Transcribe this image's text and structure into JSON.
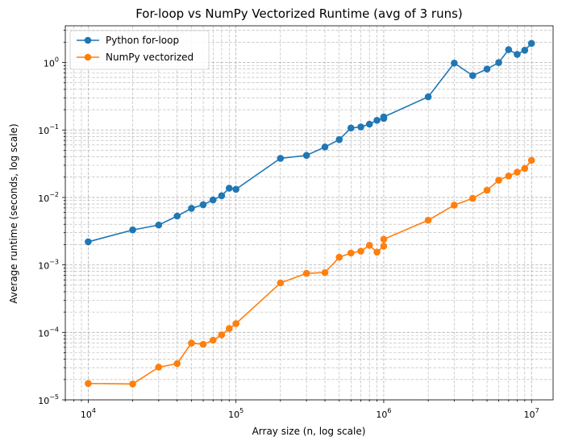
{
  "chart_data": {
    "type": "line",
    "title": "For-loop vs NumPy Vectorized Runtime (avg of 3 runs)",
    "xlabel": "Array size (n, log scale)",
    "ylabel": "Average runtime (seconds, log scale)",
    "xscale": "log",
    "yscale": "log",
    "xlim": [
      7000,
      14000000
    ],
    "ylim": [
      1e-05,
      3.5
    ],
    "grid": "both, major and minor, dashed",
    "legend": "top-left",
    "x_ticks": [
      {
        "mantissa": "10",
        "exp": "4"
      },
      {
        "mantissa": "10",
        "exp": "5"
      },
      {
        "mantissa": "10",
        "exp": "6"
      },
      {
        "mantissa": "10",
        "exp": "7"
      }
    ],
    "y_ticks": [
      {
        "mantissa": "10",
        "exp": "−5"
      },
      {
        "mantissa": "10",
        "exp": "−4"
      },
      {
        "mantissa": "10",
        "exp": "−3"
      },
      {
        "mantissa": "10",
        "exp": "−2"
      },
      {
        "mantissa": "10",
        "exp": "−1"
      },
      {
        "mantissa": "10",
        "exp": "0"
      }
    ],
    "x": [
      10000,
      20000,
      30000,
      40000,
      50000,
      60000,
      70000,
      80000,
      90000,
      100000,
      200000,
      300000,
      400000,
      500000,
      600000,
      700000,
      800000,
      900000,
      1000000,
      1000000,
      2000000,
      3000000,
      4000000,
      5000000,
      6000000,
      7000000,
      8000000,
      9000000,
      10000000
    ],
    "series": [
      {
        "name": "Python for-loop",
        "color": "#1f77b4",
        "values": [
          0.0022,
          0.0033,
          0.0039,
          0.0053,
          0.0069,
          0.0078,
          0.0092,
          0.0106,
          0.0137,
          0.0132,
          0.038,
          0.042,
          0.056,
          0.072,
          0.107,
          0.111,
          0.122,
          0.139,
          0.148,
          0.156,
          0.31,
          0.98,
          0.64,
          0.8,
          1.0,
          1.55,
          1.32,
          1.52,
          1.92
        ]
      },
      {
        "name": "NumPy vectorized",
        "color": "#ff7f0e",
        "values": [
          1.75e-05,
          1.72e-05,
          3.05e-05,
          3.45e-05,
          6.95e-05,
          6.65e-05,
          7.65e-05,
          9.2e-05,
          0.000114,
          0.000135,
          0.00054,
          0.00075,
          0.00077,
          0.0013,
          0.0015,
          0.0016,
          0.00195,
          0.00155,
          0.0019,
          0.0024,
          0.0046,
          0.0077,
          0.0097,
          0.0128,
          0.018,
          0.0208,
          0.0237,
          0.0269,
          0.0355
        ]
      }
    ]
  }
}
